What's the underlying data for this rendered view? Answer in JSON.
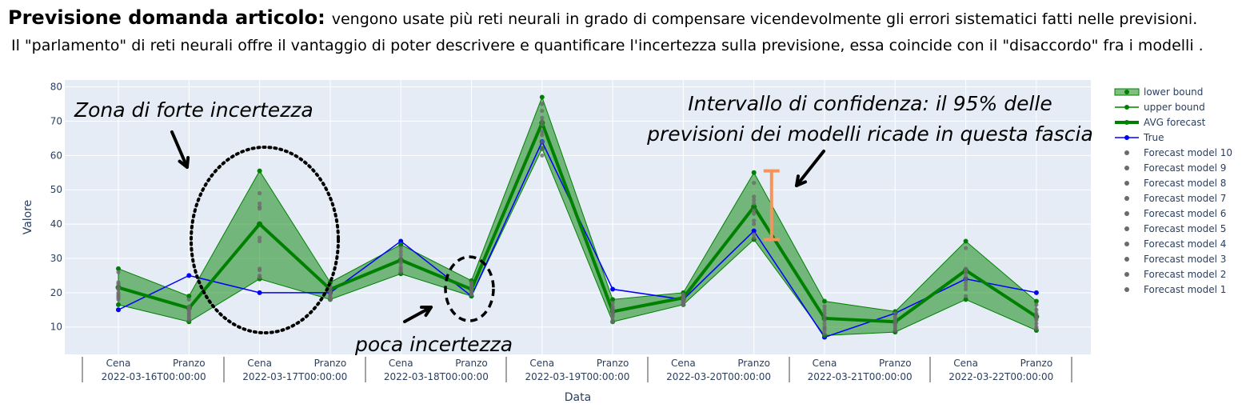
{
  "header": {
    "title_bold": "Previsione domanda articolo:",
    "title_rest": "vengono usate più reti neurali in grado di compensare vicendevolmente gli errori sistematici fatti nelle previsioni.",
    "line2": "Il \"parlamento\" di reti neurali offre il vantaggio di poter descrivere e quantificare l'incertezza sulla previsione, essa coincide con il \"disaccordo\" fra i modelli ."
  },
  "colors": {
    "plot_bg": "#e5ecf6",
    "band": "#008000",
    "avg": "#008000",
    "true": "#0000ff",
    "model_points": "#6b6b6b",
    "interval_bar": "#f5945a",
    "axis_text": "#2a3f5f"
  },
  "chart_data": {
    "type": "line",
    "xlabel": "Data",
    "ylabel": "Valore",
    "ylim": [
      2,
      82
    ],
    "yticks": [
      10,
      20,
      30,
      40,
      50,
      60,
      70,
      80
    ],
    "grid": true,
    "legend_position": "top-right",
    "x_inner": [
      "Cena",
      "Pranzo",
      "Cena",
      "Pranzo",
      "Cena",
      "Pranzo",
      "Cena",
      "Pranzo",
      "Cena",
      "Pranzo",
      "Cena",
      "Pranzo",
      "Cena",
      "Pranzo"
    ],
    "x_groups": [
      "2022-03-16T00:00:00",
      "2022-03-17T00:00:00",
      "2022-03-18T00:00:00",
      "2022-03-19T00:00:00",
      "2022-03-20T00:00:00",
      "2022-03-21T00:00:00",
      "2022-03-22T00:00:00"
    ],
    "series": [
      {
        "name": "lower bound",
        "values": [
          16.5,
          11.5,
          24,
          18,
          25.5,
          19,
          62,
          11.5,
          16.5,
          35.5,
          7.5,
          8.5,
          18,
          9
        ]
      },
      {
        "name": "upper bound",
        "values": [
          27,
          19,
          55.5,
          23,
          34,
          23.5,
          77,
          18,
          20,
          55,
          17.5,
          14.5,
          35,
          17.5
        ]
      },
      {
        "name": "AVG forecast",
        "values": [
          21.5,
          15.5,
          40,
          21,
          29.5,
          21,
          69.5,
          14.5,
          18.5,
          45,
          12.5,
          11.5,
          26.5,
          13
        ]
      },
      {
        "name": "True",
        "values": [
          15,
          25,
          20,
          20,
          35,
          19,
          64,
          21,
          18,
          38,
          7,
          14,
          24,
          20
        ]
      }
    ],
    "model_series": [
      {
        "name": "Forecast model 10",
        "values": [
          26,
          18,
          49,
          22,
          33,
          23,
          75,
          17,
          19.5,
          52,
          16,
          14,
          33,
          16.5
        ]
      },
      {
        "name": "Forecast model 9",
        "values": [
          23,
          16,
          46,
          21.5,
          32,
          22.5,
          73,
          16,
          19,
          48,
          15,
          13,
          27,
          15
        ]
      },
      {
        "name": "Forecast model 8",
        "values": [
          22.5,
          15.5,
          45,
          20.5,
          31,
          22,
          71,
          15.5,
          18.5,
          47,
          14,
          12.5,
          26.5,
          14
        ]
      },
      {
        "name": "Forecast model 7",
        "values": [
          21.5,
          15,
          44.5,
          20,
          30,
          21.5,
          70,
          15,
          18,
          46,
          13,
          12,
          26,
          13.5
        ]
      },
      {
        "name": "Forecast model 6",
        "values": [
          21,
          14.5,
          36,
          19.5,
          29,
          21,
          69,
          14.5,
          17.5,
          44,
          12,
          11.5,
          25,
          13
        ]
      },
      {
        "name": "Forecast model 5",
        "values": [
          20,
          14,
          35,
          19,
          28.5,
          20.5,
          67,
          14,
          17.5,
          43,
          11,
          11,
          24,
          12.5
        ]
      },
      {
        "name": "Forecast model 4",
        "values": [
          19.5,
          13.5,
          27,
          18.5,
          27.5,
          20,
          66,
          13.5,
          17,
          41,
          10,
          10.5,
          23,
          12
        ]
      },
      {
        "name": "Forecast model 3",
        "values": [
          19,
          13,
          26.5,
          18.5,
          27,
          20,
          64,
          13,
          17,
          40,
          9.5,
          10,
          22,
          11
        ]
      },
      {
        "name": "Forecast model 2",
        "values": [
          18.5,
          12.5,
          25,
          18,
          26.5,
          19.5,
          62,
          12,
          16.5,
          37,
          9,
          9.5,
          21,
          10
        ]
      },
      {
        "name": "Forecast model 1",
        "values": [
          18,
          12,
          24.5,
          18,
          26,
          19.5,
          60,
          11.5,
          16.5,
          36,
          8,
          9,
          19,
          9.5
        ]
      }
    ],
    "annotations": {
      "zona": "Zona di forte incertezza",
      "poca": "poca incertezza",
      "intervallo_line1": "Intervallo di confidenza: il 95% delle",
      "intervallo_line2": "previsioni dei modelli ricade in questa fascia"
    },
    "interval_bar": {
      "x_index": 9.25,
      "y_low": 35.5,
      "y_high": 55.5
    }
  }
}
